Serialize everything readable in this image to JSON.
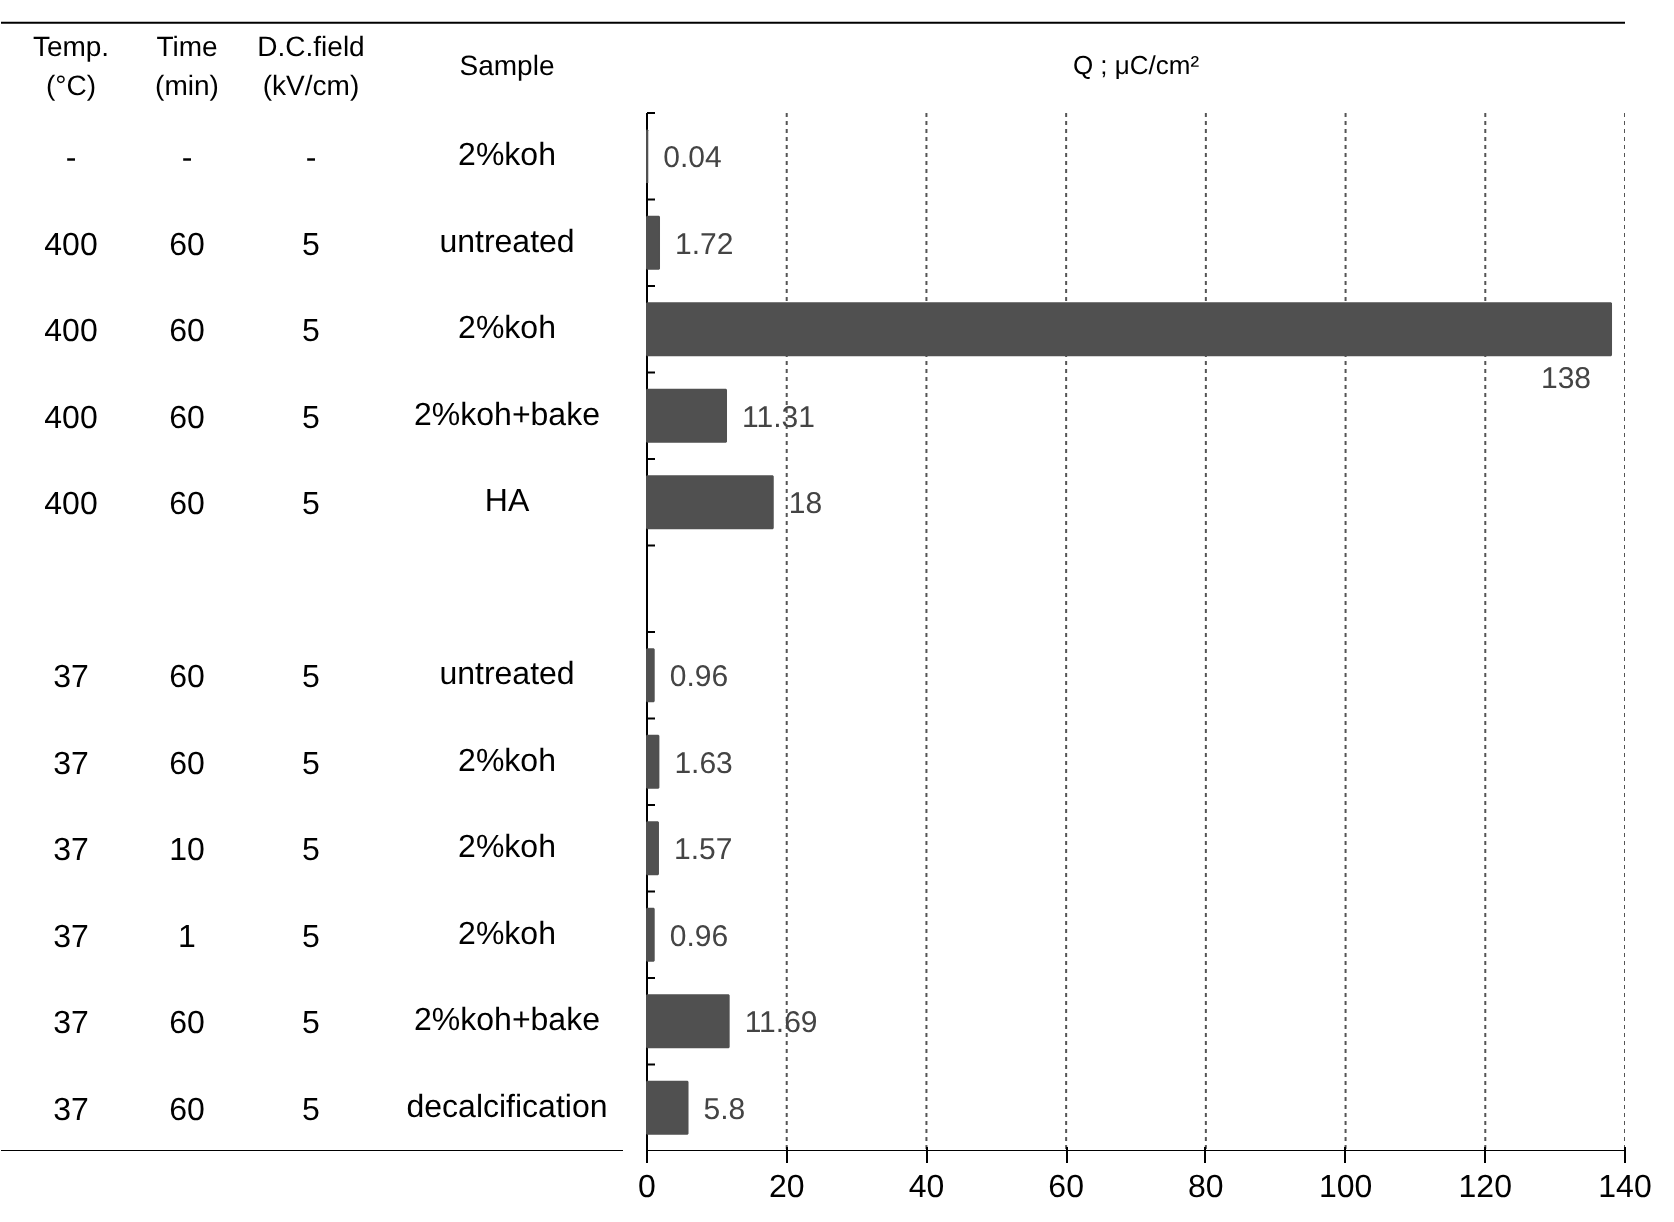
{
  "chart_data": {
    "type": "bar",
    "orientation": "horizontal",
    "xlabel": "Q ; μC/cm²",
    "categories": [
      "2%koh",
      "untreated",
      "2%koh",
      "2%koh+bake",
      "HA",
      null,
      "untreated",
      "2%koh",
      "2%koh",
      "2%koh",
      "2%koh+bake",
      "decalcification"
    ],
    "values": [
      0.04,
      1.72,
      138,
      11.31,
      18,
      null,
      0.96,
      1.63,
      1.57,
      0.96,
      11.69,
      5.8
    ],
    "color": "#505050",
    "data_labels": true,
    "xlim": [
      0,
      140
    ],
    "xticks": [
      0,
      20,
      40,
      60,
      80,
      100,
      120,
      140
    ],
    "grid": "x",
    "annotations": [
      "Temp.\n(°C)",
      "Time\n(min)",
      "D.C.field\n(kV/cm)",
      "Sample",
      "-",
      "-",
      "-",
      "400",
      "60",
      "5",
      "400",
      "60",
      "5",
      "400",
      "60",
      "5",
      "400",
      "60",
      "5",
      "37",
      "60",
      "5",
      "37",
      "60",
      "5",
      "37",
      "10",
      "5",
      "37",
      "1",
      "5",
      "37",
      "60",
      "5",
      "37",
      "60",
      "5"
    ]
  }
}
